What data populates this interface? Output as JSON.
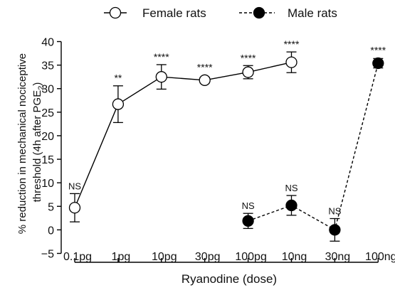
{
  "chart_data": {
    "type": "line",
    "categories": [
      "0.1pg",
      "1pg",
      "10pg",
      "30pg",
      "100pg",
      "10ng",
      "30ng",
      "100ng"
    ],
    "xlabel": "Ryanodine (dose)",
    "ylabel_main": "% reduction in mechanical nociceptive",
    "ylabel_sub": "threshold (4h after PGE",
    "ylabel_subscript": "2",
    "ylabel_close": ")",
    "ylim": [
      -5,
      40
    ],
    "yticks": [
      -5,
      0,
      5,
      10,
      15,
      20,
      25,
      30,
      35,
      40
    ],
    "legend_position": "top",
    "series": [
      {
        "name": "Female rats",
        "marker": "open-circle",
        "line": "solid",
        "color": "#000000",
        "points": [
          {
            "x": "0.1pg",
            "y": 4.7,
            "err": 3.0,
            "label": "NS"
          },
          {
            "x": "1pg",
            "y": 26.7,
            "err": 3.9,
            "label": "**"
          },
          {
            "x": "10pg",
            "y": 32.5,
            "err": 2.6,
            "label": "****"
          },
          {
            "x": "30pg",
            "y": 31.8,
            "err": 0.6,
            "label": "****"
          },
          {
            "x": "100pg",
            "y": 33.5,
            "err": 1.4,
            "label": "****"
          },
          {
            "x": "10ng",
            "y": 35.6,
            "err": 2.2,
            "label": "****"
          }
        ]
      },
      {
        "name": "Male rats",
        "marker": "filled-circle",
        "line": "dashed",
        "color": "#000000",
        "points": [
          {
            "x": "100pg",
            "y": 1.9,
            "err": 1.6,
            "label": "NS"
          },
          {
            "x": "10ng",
            "y": 5.2,
            "err": 2.1,
            "label": "NS"
          },
          {
            "x": "30ng",
            "y": 0.0,
            "err": 2.4,
            "label": "NS"
          },
          {
            "x": "100ng",
            "y": 35.4,
            "err": 1.0,
            "label": "****"
          }
        ]
      }
    ]
  }
}
